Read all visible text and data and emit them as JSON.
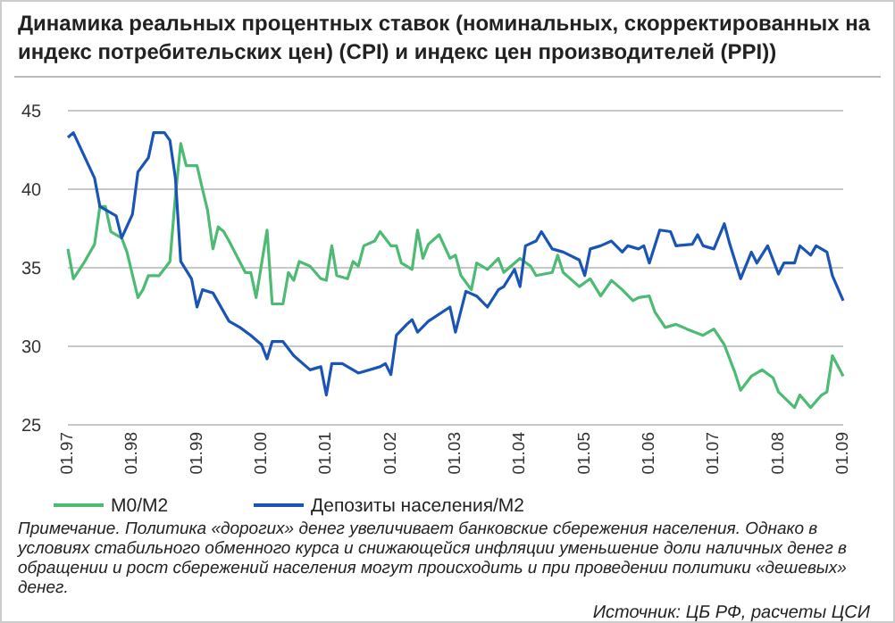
{
  "chart_data": {
    "type": "line",
    "title": "Динамика реальных процентных ставок (номинальных, скорректированных на индекс потребительских цен) (CPI) и индекс цен производителей (PPI))",
    "annotations": [
      "Примечание. Политика «дорогих» денег увеличивает банковские сбережения населения. Однако в условиях стабильного обменного курса и снижающейся инфляции уменьшение доли наличных денег в обращении и рост сбережений населения могут происходить и при проведении политики «дешевых» денег.",
      "Источник: ЦБ РФ, расчеты ЦСИ"
    ],
    "xlim": [
      "1997-01",
      "2009-01"
    ],
    "xticks": [
      {
        "value": "1997-01",
        "label": "01.97"
      },
      {
        "value": "1998-01",
        "label": "01.98"
      },
      {
        "value": "1999-01",
        "label": "01.99"
      },
      {
        "value": "2000-01",
        "label": "01.00"
      },
      {
        "value": "2001-01",
        "label": "01.01"
      },
      {
        "value": "2002-01",
        "label": "01.02"
      },
      {
        "value": "2003-01",
        "label": "01.03"
      },
      {
        "value": "2004-01",
        "label": "01.04"
      },
      {
        "value": "2005-01",
        "label": "01.05"
      },
      {
        "value": "2006-01",
        "label": "01.06"
      },
      {
        "value": "2007-01",
        "label": "01.07"
      },
      {
        "value": "2008-01",
        "label": "01.08"
      },
      {
        "value": "2009-01",
        "label": "01.09"
      }
    ],
    "ylim": [
      25,
      45
    ],
    "yticks": [
      25,
      30,
      35,
      40,
      45
    ],
    "grid": "y",
    "legend": "bottom",
    "line_style": "solid",
    "series": [
      {
        "name": "M0/M2",
        "color": "#4dbb74",
        "x": [
          "1997-01",
          "1997-02",
          "1997-04",
          "1997-06",
          "1997-07",
          "1997-08",
          "1997-09",
          "1997-11",
          "1997-12",
          "1998-02",
          "1998-03",
          "1998-04",
          "1998-06",
          "1998-08",
          "1998-09",
          "1998-10",
          "1998-11",
          "1999-01",
          "1999-02",
          "1999-03",
          "1999-04",
          "1999-05",
          "1999-06",
          "1999-07",
          "1999-10",
          "1999-11",
          "1999-12",
          "2000-02",
          "2000-03",
          "2000-05",
          "2000-06",
          "2000-07",
          "2000-08",
          "2000-10",
          "2000-12",
          "2001-01",
          "2001-02",
          "2001-03",
          "2001-05",
          "2001-06",
          "2001-07",
          "2001-08",
          "2001-10",
          "2001-11",
          "2002-01",
          "2002-02",
          "2002-03",
          "2002-05",
          "2002-06",
          "2002-07",
          "2002-08",
          "2002-10",
          "2002-12",
          "2003-01",
          "2003-02",
          "2003-04",
          "2003-05",
          "2003-07",
          "2003-09",
          "2003-10",
          "2004-01",
          "2004-03",
          "2004-04",
          "2004-07",
          "2004-08",
          "2004-09",
          "2004-12",
          "2005-02",
          "2005-04",
          "2005-06",
          "2005-08",
          "2005-10",
          "2005-11",
          "2006-01",
          "2006-02",
          "2006-04",
          "2006-06",
          "2006-08",
          "2006-11",
          "2007-01",
          "2007-03",
          "2007-05",
          "2007-06",
          "2007-08",
          "2007-10",
          "2007-12",
          "2008-01",
          "2008-04",
          "2008-05",
          "2008-07",
          "2008-09",
          "2008-10",
          "2008-11",
          "2009-01"
        ],
        "values": [
          36.2,
          34.3,
          35.3,
          36.5,
          38.9,
          38.9,
          37.3,
          36.9,
          36,
          33.1,
          33.6,
          34.5,
          34.5,
          35.4,
          39.6,
          42.9,
          41.5,
          41.5,
          40,
          38.7,
          36.2,
          37.6,
          37.3,
          36.7,
          34.7,
          34.7,
          33.1,
          37.4,
          32.7,
          32.7,
          34.7,
          34.2,
          35.4,
          35.1,
          34.3,
          34.2,
          36.4,
          34.5,
          34.3,
          35.4,
          35.1,
          36.4,
          36.7,
          37.3,
          36.4,
          36.4,
          35.3,
          34.9,
          37.4,
          35.6,
          36.5,
          37.1,
          35.6,
          35.8,
          34.5,
          33.6,
          35.3,
          34.9,
          35.6,
          34.7,
          35.6,
          35.1,
          34.5,
          34.7,
          35.8,
          34.7,
          33.8,
          34.3,
          33.2,
          34.2,
          33.6,
          32.9,
          33.1,
          33.2,
          32.2,
          31.2,
          31.4,
          31.1,
          30.7,
          31.1,
          30.1,
          28.3,
          27.2,
          28.1,
          28.5,
          28,
          27.1,
          26.1,
          26.9,
          26.1,
          26.9,
          27.1,
          29.4,
          28.1
        ]
      },
      {
        "name": "Депозиты населения/M2",
        "color": "#1a55b5",
        "x": [
          "1997-01",
          "1997-02",
          "1997-06",
          "1997-07",
          "1997-10",
          "1997-11",
          "1998-01",
          "1998-02",
          "1998-04",
          "1998-05",
          "1998-07",
          "1998-08",
          "1998-09",
          "1998-10",
          "1998-12",
          "1999-01",
          "1999-02",
          "1999-04",
          "1999-07",
          "1999-09",
          "1999-11",
          "2000-01",
          "2000-02",
          "2000-03",
          "2000-05",
          "2000-07",
          "2000-10",
          "2000-12",
          "2001-01",
          "2001-02",
          "2001-04",
          "2001-06",
          "2001-07",
          "2001-11",
          "2001-12",
          "2002-01",
          "2002-02",
          "2002-04",
          "2002-05",
          "2002-06",
          "2002-08",
          "2002-12",
          "2003-01",
          "2003-03",
          "2003-05",
          "2003-07",
          "2003-09",
          "2003-10",
          "2003-12",
          "2004-01",
          "2004-02",
          "2004-04",
          "2004-05",
          "2004-07",
          "2004-09",
          "2004-12",
          "2005-01",
          "2005-02",
          "2005-04",
          "2005-06",
          "2005-08",
          "2005-09",
          "2005-11",
          "2005-12",
          "2006-01",
          "2006-03",
          "2006-05",
          "2006-06",
          "2006-09",
          "2006-10",
          "2006-11",
          "2007-01",
          "2007-03",
          "2007-04",
          "2007-06",
          "2007-08",
          "2007-09",
          "2007-11",
          "2008-01",
          "2008-02",
          "2008-04",
          "2008-05",
          "2008-07",
          "2008-08",
          "2008-10",
          "2008-11",
          "2009-01"
        ],
        "values": [
          43.3,
          43.6,
          40.7,
          38.9,
          38.3,
          36.9,
          38.4,
          41.1,
          42,
          43.6,
          43.6,
          43.1,
          40.7,
          35.4,
          34.3,
          32.5,
          33.6,
          33.4,
          31.6,
          31.2,
          30.7,
          30.1,
          29.2,
          30.3,
          30.3,
          29.4,
          28.5,
          28.7,
          26.9,
          28.9,
          28.9,
          28.5,
          28.3,
          28.7,
          28.9,
          28.2,
          30.7,
          31.4,
          31.7,
          30.9,
          31.6,
          32.5,
          30.9,
          33.5,
          33.2,
          32.5,
          33.6,
          33.8,
          34.9,
          33.8,
          36.4,
          36.7,
          37.3,
          36.2,
          36,
          35.5,
          34.5,
          36.2,
          36.4,
          36.7,
          36,
          36.4,
          36.2,
          36.4,
          35.3,
          37.4,
          37.3,
          36.4,
          36.5,
          37.1,
          36.4,
          36.2,
          37.8,
          36.5,
          34.3,
          36,
          35.3,
          36.4,
          34.6,
          35.3,
          35.3,
          36.4,
          35.8,
          36.4,
          36,
          34.5,
          32.9
        ]
      }
    ]
  }
}
